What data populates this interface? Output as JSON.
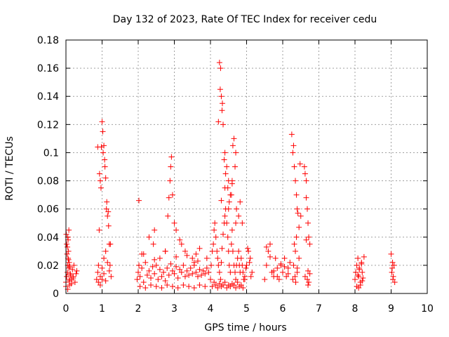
{
  "chart_data": {
    "type": "scatter",
    "title": "Day 132 of 2023, Rate Of TEC Index for receiver cedu",
    "xlabel": "GPS time / hours",
    "ylabel": "ROTI / TECUs",
    "xlim": [
      0,
      10
    ],
    "ylim": [
      0,
      0.18
    ],
    "xticks": [
      0,
      1,
      2,
      3,
      4,
      5,
      6,
      7,
      8,
      9,
      10
    ],
    "xtick_labels": [
      "0",
      "1",
      "2",
      "3",
      "4",
      "5",
      "6",
      "7",
      "8",
      "9",
      "10"
    ],
    "yticks": [
      0,
      0.02,
      0.04,
      0.06,
      0.08,
      0.1,
      0.12,
      0.14,
      0.16,
      0.18
    ],
    "ytick_labels": [
      "0",
      "0.02",
      "0.04",
      "0.06",
      "0.08",
      "0.1",
      "0.12",
      "0.14",
      "0.16",
      "0.18"
    ],
    "grid": true,
    "marker": "plus",
    "color": "#ff0000",
    "series": [
      {
        "x": [
          0.0,
          0.02,
          0.04,
          0.05,
          0.06,
          0.07,
          0.08,
          0.09,
          0.1,
          0.12,
          0.15,
          0.2,
          0.25,
          0.3,
          0.02,
          0.05,
          0.08,
          0.03,
          0.06,
          0.09,
          0.0,
          0.05,
          0.1,
          0.15,
          0.2,
          0.01,
          0.04,
          0.07,
          0.11,
          0.13,
          0.18,
          0.22,
          0.28,
          0.85,
          0.88,
          0.9,
          0.92,
          0.95,
          0.98,
          1.0,
          1.02,
          1.05,
          1.08,
          1.1,
          1.12,
          1.15,
          1.18,
          1.2,
          1.22,
          1.25,
          0.9,
          0.95,
          1.0,
          1.05,
          1.1,
          1.15,
          1.2,
          0.88,
          0.93,
          0.97,
          1.03,
          1.07,
          1.13,
          1.17,
          1.23,
          0.95,
          1.0,
          1.05,
          1.1,
          1.97,
          2.0,
          2.02,
          2.05,
          2.1,
          2.15,
          2.2,
          2.25,
          2.3,
          2.35,
          2.4,
          2.45,
          2.5,
          2.55,
          2.6,
          2.65,
          2.7,
          2.75,
          2.8,
          2.85,
          2.9,
          2.95,
          3.0,
          3.05,
          3.1,
          3.15,
          3.2,
          3.25,
          3.3,
          3.35,
          3.4,
          3.45,
          3.5,
          3.55,
          3.6,
          3.65,
          3.7,
          3.75,
          3.8,
          3.85,
          3.9,
          3.95,
          2.02,
          2.1,
          2.3,
          2.42,
          2.45,
          2.6,
          2.75,
          2.82,
          2.85,
          2.88,
          2.9,
          2.92,
          2.95,
          3.0,
          3.05,
          3.15,
          3.2,
          3.3,
          3.5,
          3.6,
          3.55,
          3.7,
          3.9,
          2.05,
          2.2,
          2.35,
          2.5,
          2.65,
          2.8,
          2.95,
          3.1,
          3.25,
          3.4,
          3.55,
          3.7,
          3.85,
          2.15,
          2.45,
          2.75,
          3.05,
          3.35,
          3.65,
          4.0,
          4.02,
          4.05,
          4.08,
          4.1,
          4.12,
          4.15,
          4.18,
          4.2,
          4.22,
          4.25,
          4.28,
          4.3,
          4.32,
          4.35,
          4.38,
          4.4,
          4.42,
          4.45,
          4.48,
          4.5,
          4.52,
          4.55,
          4.58,
          4.6,
          4.62,
          4.65,
          4.68,
          4.7,
          4.72,
          4.75,
          4.78,
          4.8,
          4.82,
          4.85,
          4.88,
          4.9,
          4.92,
          4.95,
          4.05,
          4.1,
          4.15,
          4.2,
          4.25,
          4.3,
          4.35,
          4.4,
          4.45,
          4.5,
          4.55,
          4.6,
          4.65,
          4.7,
          4.75,
          4.8,
          4.85,
          4.9,
          4.25,
          4.27,
          4.3,
          4.32,
          4.35,
          4.4,
          4.45,
          4.5,
          4.55,
          4.6,
          4.65,
          4.7,
          4.22,
          4.28,
          4.33,
          4.38,
          4.42,
          4.48,
          4.52,
          4.58,
          4.62,
          4.68,
          4.72,
          4.78,
          4.82,
          4.88,
          4.3,
          4.4,
          4.5,
          4.6,
          4.7,
          4.95,
          5.0,
          5.05,
          5.1,
          5.15,
          4.98,
          5.03,
          5.08,
          5.12,
          5.5,
          5.55,
          5.6,
          5.65,
          5.7,
          5.75,
          5.8,
          5.85,
          5.9,
          5.95,
          6.0,
          6.05,
          6.1,
          6.15,
          6.2,
          5.55,
          5.65,
          5.75,
          5.85,
          5.95,
          6.05,
          6.15,
          6.25,
          6.28,
          6.3,
          6.32,
          6.35,
          6.38,
          6.4,
          6.42,
          6.45,
          6.48,
          6.5,
          6.3,
          6.35,
          6.4,
          6.45,
          6.32,
          6.38,
          6.28,
          6.34,
          6.4,
          6.36,
          6.6,
          6.62,
          6.65,
          6.68,
          6.7,
          6.72,
          6.75,
          6.65,
          6.7,
          6.62,
          6.68,
          6.72,
          6.75,
          6.7,
          6.65,
          8.0,
          8.02,
          8.05,
          8.08,
          8.1,
          8.12,
          8.15,
          8.18,
          8.2,
          8.22,
          8.25,
          8.05,
          8.1,
          8.15,
          8.2,
          8.08,
          8.12,
          8.18,
          9.0,
          9.02,
          9.05,
          9.08,
          9.1,
          9.03,
          9.06,
          9.04
        ],
        "y": [
          0.008,
          0.012,
          0.015,
          0.02,
          0.025,
          0.03,
          0.018,
          0.01,
          0.006,
          0.014,
          0.01,
          0.012,
          0.008,
          0.016,
          0.035,
          0.04,
          0.045,
          0.028,
          0.038,
          0.022,
          0.005,
          0.003,
          0.009,
          0.007,
          0.011,
          0.042,
          0.033,
          0.024,
          0.019,
          0.013,
          0.017,
          0.02,
          0.014,
          0.01,
          0.015,
          0.02,
          0.045,
          0.08,
          0.104,
          0.122,
          0.115,
          0.105,
          0.09,
          0.082,
          0.06,
          0.055,
          0.048,
          0.035,
          0.02,
          0.012,
          0.008,
          0.012,
          0.018,
          0.025,
          0.03,
          0.022,
          0.016,
          0.104,
          0.085,
          0.075,
          0.1,
          0.095,
          0.065,
          0.058,
          0.035,
          0.006,
          0.01,
          0.014,
          0.009,
          0.01,
          0.015,
          0.02,
          0.012,
          0.018,
          0.008,
          0.022,
          0.013,
          0.016,
          0.011,
          0.019,
          0.014,
          0.02,
          0.01,
          0.017,
          0.012,
          0.015,
          0.009,
          0.018,
          0.013,
          0.021,
          0.016,
          0.014,
          0.019,
          0.011,
          0.017,
          0.015,
          0.02,
          0.012,
          0.016,
          0.013,
          0.018,
          0.014,
          0.02,
          0.015,
          0.012,
          0.017,
          0.013,
          0.016,
          0.014,
          0.018,
          0.015,
          0.066,
          0.028,
          0.04,
          0.035,
          0.045,
          0.025,
          0.03,
          0.055,
          0.068,
          0.08,
          0.09,
          0.097,
          0.07,
          0.05,
          0.045,
          0.038,
          0.035,
          0.03,
          0.025,
          0.028,
          0.022,
          0.032,
          0.025,
          0.005,
          0.004,
          0.006,
          0.005,
          0.004,
          0.006,
          0.005,
          0.004,
          0.006,
          0.005,
          0.004,
          0.006,
          0.005,
          0.028,
          0.024,
          0.03,
          0.026,
          0.027,
          0.023,
          0.01,
          0.02,
          0.03,
          0.035,
          0.045,
          0.05,
          0.04,
          0.03,
          0.025,
          0.02,
          0.015,
          0.01,
          0.022,
          0.032,
          0.042,
          0.05,
          0.055,
          0.06,
          0.05,
          0.04,
          0.03,
          0.02,
          0.015,
          0.035,
          0.045,
          0.03,
          0.02,
          0.015,
          0.01,
          0.02,
          0.025,
          0.03,
          0.02,
          0.015,
          0.025,
          0.02,
          0.015,
          0.01,
          0.012,
          0.005,
          0.008,
          0.006,
          0.004,
          0.007,
          0.005,
          0.006,
          0.008,
          0.004,
          0.006,
          0.005,
          0.007,
          0.006,
          0.004,
          0.008,
          0.005,
          0.006,
          0.004,
          0.164,
          0.145,
          0.14,
          0.13,
          0.12,
          0.1,
          0.09,
          0.08,
          0.07,
          0.078,
          0.11,
          0.1,
          0.122,
          0.16,
          0.135,
          0.095,
          0.085,
          0.075,
          0.065,
          0.07,
          0.105,
          0.09,
          0.06,
          0.055,
          0.065,
          0.05,
          0.066,
          0.075,
          0.06,
          0.08,
          0.05,
          0.01,
          0.02,
          0.03,
          0.025,
          0.015,
          0.018,
          0.032,
          0.022,
          0.012,
          0.01,
          0.02,
          0.03,
          0.035,
          0.015,
          0.012,
          0.025,
          0.018,
          0.01,
          0.02,
          0.015,
          0.025,
          0.012,
          0.018,
          0.022,
          0.033,
          0.026,
          0.016,
          0.012,
          0.021,
          0.019,
          0.014,
          0.113,
          0.1,
          0.105,
          0.09,
          0.08,
          0.07,
          0.06,
          0.057,
          0.047,
          0.092,
          0.055,
          0.02,
          0.03,
          0.015,
          0.025,
          0.035,
          0.04,
          0.01,
          0.012,
          0.018,
          0.008,
          0.09,
          0.085,
          0.08,
          0.06,
          0.05,
          0.04,
          0.035,
          0.068,
          0.016,
          0.012,
          0.01,
          0.008,
          0.014,
          0.006,
          0.038,
          0.01,
          0.015,
          0.02,
          0.025,
          0.012,
          0.018,
          0.008,
          0.022,
          0.015,
          0.011,
          0.026,
          0.005,
          0.004,
          0.006,
          0.009,
          0.013,
          0.017,
          0.021,
          0.028,
          0.015,
          0.01,
          0.02,
          0.008,
          0.018,
          0.012,
          0.022
        ]
      }
    ]
  }
}
